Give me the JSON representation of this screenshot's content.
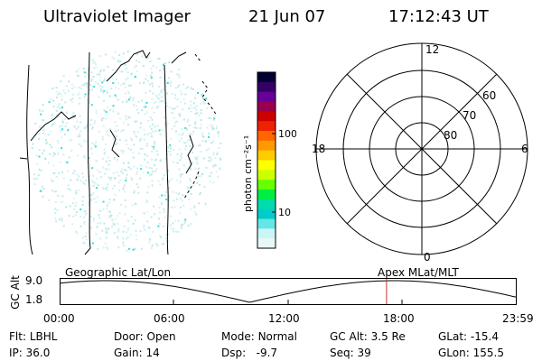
{
  "header": {
    "title": "Ultraviolet Imager",
    "date": "21 Jun 07",
    "time": "17:12:43 UT"
  },
  "colorbar": {
    "label": "photon cm⁻²s⁻¹",
    "tick_100": "100",
    "tick_10": "10",
    "stops": [
      "#000033",
      "#330066",
      "#660099",
      "#99004d",
      "#cc0000",
      "#ee2200",
      "#ff6600",
      "#ff9900",
      "#ffcc00",
      "#ffff00",
      "#ccff00",
      "#66ff00",
      "#00ee44",
      "#00ddaa",
      "#00cccc",
      "#66e6e6",
      "#ccf5f5",
      "#e8f8f8"
    ]
  },
  "polar": {
    "labels": {
      "mlt_12": "12",
      "mlt_0": "0",
      "mlt_18": "18",
      "mlt_6": "6",
      "lat_60": "60",
      "lat_70": "70",
      "lat_80": "80"
    }
  },
  "timeline": {
    "left_label": "Geographic Lat/Lon",
    "right_label": "Apex MLat/MLT",
    "y_axis_label": "GC Alt",
    "y_max": "9.0",
    "y_min": "1.8",
    "ticks": [
      "00:00",
      "06:00",
      "12:00",
      "18:00",
      "23:59"
    ],
    "current_hour": 17.2
  },
  "info": {
    "flt_label": "Flt:",
    "flt_value": "LBHL",
    "ip_label": "IP:",
    "ip_value": "36.0",
    "door_label": "Door:",
    "door_value": "Open",
    "gain_label": "Gain:",
    "gain_value": "14",
    "mode_label": "Mode:",
    "mode_value": "Normal",
    "dsp_label": "Dsp:",
    "dsp_value": "-9.7",
    "gcalt_label": "GC Alt:",
    "gcalt_value": "3.5 Re",
    "seq_label": "Seq:",
    "seq_value": "39",
    "glat_label": "GLat:",
    "glat_value": "-15.4",
    "glon_label": "GLon:",
    "glon_value": "155.5"
  },
  "colors": {
    "emission": "#b8e6e6",
    "bright": "#33dddd",
    "marker": "#cc3333"
  }
}
